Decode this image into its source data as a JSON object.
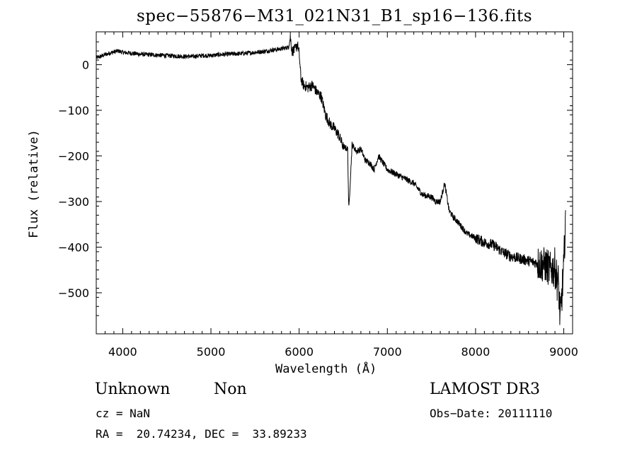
{
  "chart_data": {
    "type": "line",
    "title": "spec−55876−M31_021N31_B1_sp16−136.fits",
    "xlabel": "Wavelength (Å)",
    "ylabel": "Flux (relative)",
    "xlim": [
      3700,
      9100
    ],
    "ylim": [
      -590,
      72
    ],
    "xticks": [
      4000,
      5000,
      6000,
      7000,
      8000,
      9000
    ],
    "yticks": [
      0,
      -100,
      -200,
      -300,
      -400,
      -500
    ],
    "xtick_labels": [
      "4000",
      "5000",
      "6000",
      "7000",
      "8000",
      "9000"
    ],
    "ytick_labels": [
      "0",
      "−100",
      "−200",
      "−300",
      "−400",
      "−500"
    ],
    "grid": false,
    "series": [
      {
        "x": [
          3700,
          3750,
          3800,
          3850,
          3900,
          3950,
          4000,
          4100,
          4200,
          4300,
          4400,
          4500,
          4600,
          4700,
          4800,
          4900,
          5000,
          5100,
          5200,
          5300,
          5400,
          5500,
          5600,
          5700,
          5800,
          5880,
          5900,
          5920,
          5950,
          5980,
          6000,
          6020,
          6050,
          6100,
          6150,
          6200,
          6250,
          6300,
          6350,
          6400,
          6450,
          6500,
          6550,
          6563,
          6600,
          6650,
          6700,
          6750,
          6800,
          6850,
          6900,
          6950,
          7000,
          7050,
          7100,
          7200,
          7300,
          7400,
          7500,
          7550,
          7600,
          7650,
          7700,
          7750,
          7800,
          7900,
          8000,
          8100,
          8200,
          8300,
          8400,
          8500,
          8600,
          8700,
          8800,
          8850,
          8900,
          8920,
          8940,
          8960,
          8980,
          9000,
          9020
        ],
        "y": [
          15,
          18,
          22,
          25,
          28,
          30,
          27,
          25,
          23,
          22,
          21,
          20,
          19,
          18,
          18,
          20,
          20,
          22,
          23,
          24,
          25,
          27,
          29,
          32,
          35,
          38,
          60,
          30,
          32,
          45,
          25,
          -30,
          -45,
          -50,
          -45,
          -60,
          -70,
          -110,
          -130,
          -140,
          -155,
          -180,
          -185,
          -320,
          -175,
          -190,
          -185,
          -210,
          -215,
          -230,
          -200,
          -215,
          -230,
          -235,
          -240,
          -250,
          -260,
          -285,
          -290,
          -300,
          -300,
          -260,
          -320,
          -335,
          -345,
          -370,
          -380,
          -390,
          -395,
          -410,
          -420,
          -425,
          -430,
          -435,
          -440,
          -450,
          -445,
          -470,
          -480,
          -560,
          -500,
          -450,
          -320
        ],
        "noise": [
          2,
          5,
          12,
          7,
          12,
          40,
          45
        ]
      }
    ]
  },
  "footer": {
    "class_label": "Unknown",
    "subclass_label": "Non",
    "survey": "LAMOST DR3",
    "cz": "cz = NaN",
    "obs_date": "Obs−Date: 20111110",
    "coords": "RA =  20.74234, DEC =  33.89233"
  }
}
